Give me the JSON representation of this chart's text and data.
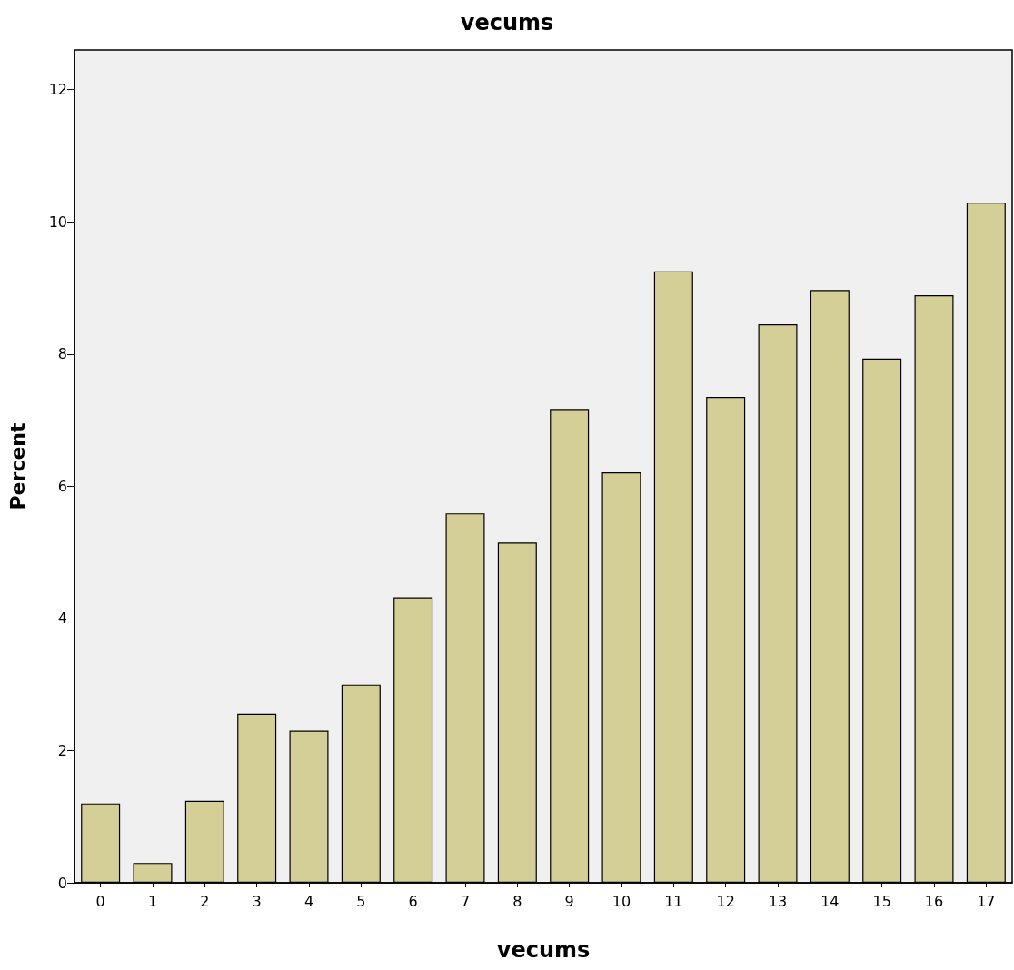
{
  "chart_data": {
    "type": "bar",
    "title": "vecums",
    "xlabel": "vecums",
    "ylabel": "Percent",
    "categories": [
      "0",
      "1",
      "2",
      "3",
      "4",
      "5",
      "6",
      "7",
      "8",
      "9",
      "10",
      "11",
      "12",
      "13",
      "14",
      "15",
      "16",
      "17"
    ],
    "values": [
      1.2,
      0.3,
      1.24,
      2.56,
      2.3,
      3.0,
      4.32,
      5.59,
      5.15,
      7.17,
      6.21,
      9.25,
      7.35,
      8.45,
      8.97,
      7.93,
      8.89,
      10.29
    ],
    "color": "#d4cf96",
    "ylim": [
      0,
      12.6
    ],
    "yticks": [
      0,
      2,
      4,
      6,
      8,
      10,
      12
    ],
    "grid": false
  }
}
